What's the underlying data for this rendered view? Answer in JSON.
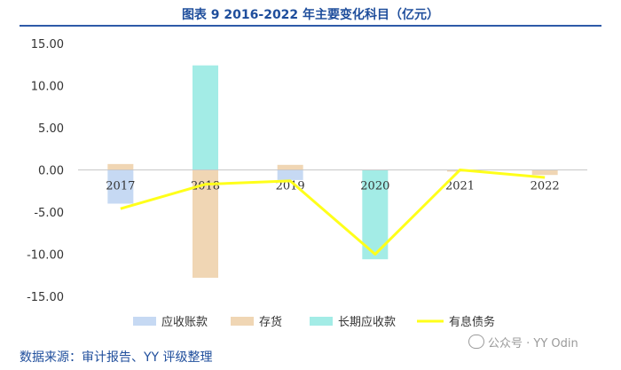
{
  "title": "图表 9 2016-2022 年主要变化科目（亿元）",
  "source": "数据来源：审计报告、YY 评级整理",
  "watermark": "公众号 · YY Odin",
  "chart_data": {
    "type": "bar",
    "categories": [
      "2017",
      "2018",
      "2019",
      "2020",
      "2021",
      "2022"
    ],
    "y_ticks": [
      "15.00",
      "10.00",
      "5.00",
      "0.00",
      "-5.00",
      "-10.00",
      "-15.00"
    ],
    "ylim": [
      -15,
      15
    ],
    "series": [
      {
        "name": "应收账款",
        "type": "bar",
        "color": "#c6d9f3",
        "values": [
          -4.0,
          0.6,
          -1.2,
          0,
          0,
          0
        ]
      },
      {
        "name": "存货",
        "type": "bar",
        "color": "#f0d6b4",
        "values": [
          0.7,
          -12.8,
          0.6,
          0,
          -0.2,
          -0.6
        ]
      },
      {
        "name": "长期应收款",
        "type": "bar",
        "color": "#a3ece6",
        "values": [
          0,
          12.4,
          0,
          -10.6,
          0,
          0
        ]
      },
      {
        "name": "有息债务",
        "type": "line",
        "color": "#ffff1a",
        "values": [
          -4.6,
          -1.7,
          -1.3,
          -10.0,
          0.0,
          -0.9
        ]
      }
    ],
    "legend_position": "bottom",
    "grid": false
  }
}
